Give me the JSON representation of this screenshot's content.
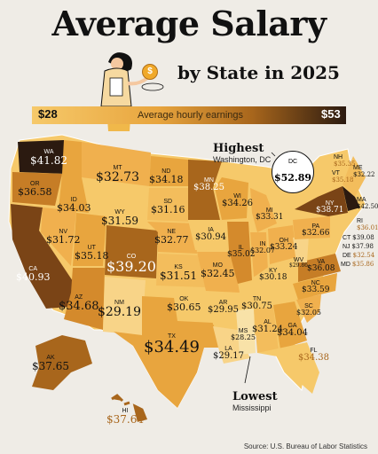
{
  "title": "Average Salary",
  "subtitle": "by State in 2025",
  "legend": {
    "min": "$28",
    "max": "$53",
    "label": "Average hourly earnings"
  },
  "highest": {
    "heading": "Highest",
    "sub": "Washington, DC",
    "abbr": "DC",
    "value": "$52.89"
  },
  "lowest": {
    "heading": "Lowest",
    "sub": "Mississippi"
  },
  "source": "Source: U.S. Bureau of Labor Statistics",
  "states": {
    "WA": "$41.82",
    "OR": "$36.58",
    "CA": "$40.93",
    "NV": "$31.72",
    "ID": "$34.03",
    "MT": "$32.73",
    "WY": "$31.59",
    "UT": "$35.18",
    "AZ": "$34.68",
    "CO": "$39.20",
    "NM": "$29.19",
    "ND": "$34.18",
    "SD": "$31.16",
    "NE": "$32.77",
    "KS": "$31.51",
    "OK": "$30.65",
    "TX": "$34.49",
    "MN": "$38.25",
    "IA": "$30.94",
    "MO": "$32.45",
    "AR": "$29.95",
    "LA": "$29.17",
    "WI": "$34.26",
    "IL": "$35.02",
    "MI": "$33.31",
    "IN": "$32.07",
    "OH": "$33.24",
    "KY": "$30.18",
    "TN": "$30.75",
    "MS": "$28.25",
    "AL": "$31.24",
    "GA": "$34.04",
    "FL": "$34.38",
    "SC": "$32.05",
    "NC": "$33.59",
    "VA": "$36.08",
    "WV": "$29.86",
    "PA": "$32.66",
    "NY": "$38.71",
    "AK": "$37.65",
    "HI": "$37.64",
    "NH": "$35.35",
    "VT": "$35.18",
    "ME": "$32.22",
    "MA": "$42.50",
    "RI": "$36.01",
    "CT": "$39.08",
    "NJ": "$37.98",
    "DE": "$32.54",
    "MD": "$35.86"
  },
  "colors": {
    "lightest": "#f8d488",
    "light": "#f3bd5c",
    "mid": "#e8a53e",
    "medium": "#c67d26",
    "dark": "#a8661c",
    "darker": "#7a4416",
    "darkest": "#2b1a10",
    "background": "#efece6"
  }
}
